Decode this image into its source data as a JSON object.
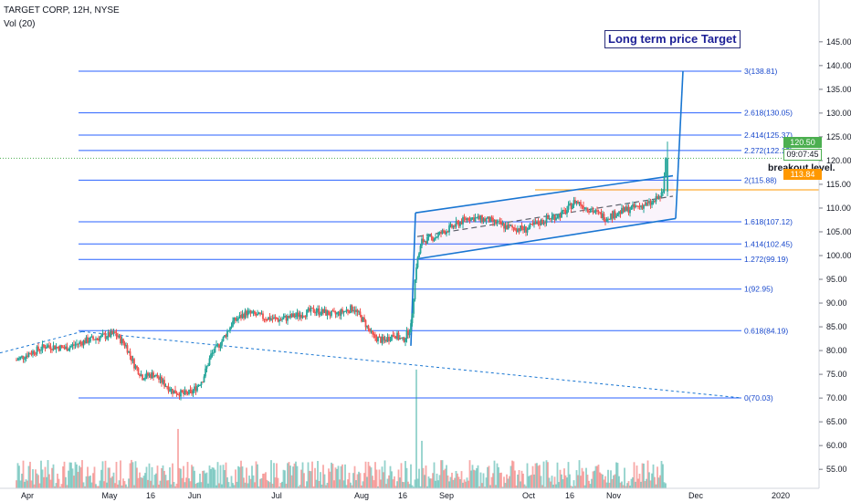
{
  "header": {
    "symbol": "TARGET CORP, 12H, NYSE",
    "volume_label": "Vol (20)"
  },
  "annotations": {
    "target_label": "Long term price Target",
    "breakout_label": "breakout level."
  },
  "price_labels": {
    "last_price": "120.50",
    "countdown": "09:07:45",
    "breakout_price": "113.84"
  },
  "colors": {
    "up": "#26a69a",
    "down": "#ef5350",
    "fib": "#2962ff",
    "channel": "#1976d2",
    "last_price_line": "#4caf50",
    "breakout_line": "#ff9800"
  },
  "chart_data": {
    "type": "candlestick",
    "title": "TARGET CORP, 12H, NYSE",
    "x_ticks": [
      "Apr",
      "May",
      "16",
      "Jun",
      "Jul",
      "Aug",
      "16",
      "Sep",
      "Oct",
      "16",
      "Nov",
      "Dec",
      "2020"
    ],
    "y_ticks": [
      55,
      60,
      65,
      70,
      75,
      80,
      85,
      90,
      95,
      100,
      105,
      110,
      115,
      120,
      125,
      130,
      135,
      140,
      145
    ],
    "ylim": [
      51,
      149
    ],
    "fib_levels": [
      {
        "label": "0(70.03)",
        "value": 70.03
      },
      {
        "label": "0.618(84.19)",
        "value": 84.19
      },
      {
        "label": "1(92.95)",
        "value": 92.95
      },
      {
        "label": "1.272(99.19)",
        "value": 99.19
      },
      {
        "label": "1.414(102.45)",
        "value": 102.45
      },
      {
        "label": "1.618(107.12)",
        "value": 107.12
      },
      {
        "label": "2(115.88)",
        "value": 115.88
      },
      {
        "label": "2.272(122.12)",
        "value": 122.12
      },
      {
        "label": "2.414(125.37)",
        "value": 125.37
      },
      {
        "label": "2.618(130.05)",
        "value": 130.05
      },
      {
        "label": "3(138.81)",
        "value": 138.81
      }
    ],
    "last_price": 120.5,
    "breakout_level": 113.84,
    "price_path": [
      {
        "t": "Mar 28",
        "close": 78.0
      },
      {
        "t": "Apr 2",
        "close": 79.5
      },
      {
        "t": "Apr 8",
        "close": 81.0
      },
      {
        "t": "Apr 15",
        "close": 80.5
      },
      {
        "t": "Apr 22",
        "close": 82.0
      },
      {
        "t": "Apr 29",
        "close": 83.0
      },
      {
        "t": "May 3",
        "close": 83.5
      },
      {
        "t": "May 7",
        "close": 81.0
      },
      {
        "t": "May 10",
        "close": 77.0
      },
      {
        "t": "May 13",
        "close": 74.5
      },
      {
        "t": "May 17",
        "close": 75.0
      },
      {
        "t": "May 21",
        "close": 73.0
      },
      {
        "t": "May 24",
        "close": 71.5
      },
      {
        "t": "May 28",
        "close": 70.8
      },
      {
        "t": "May 31",
        "close": 71.2
      },
      {
        "t": "Jun 4",
        "close": 74.0
      },
      {
        "t": "Jun 7",
        "close": 79.0
      },
      {
        "t": "Jun 11",
        "close": 82.0
      },
      {
        "t": "Jun 15",
        "close": 86.0
      },
      {
        "t": "Jun 20",
        "close": 88.0
      },
      {
        "t": "Jun 26",
        "close": 87.0
      },
      {
        "t": "Jul 2",
        "close": 86.5
      },
      {
        "t": "Jul 9",
        "close": 87.5
      },
      {
        "t": "Jul 15",
        "close": 88.5
      },
      {
        "t": "Jul 22",
        "close": 87.5
      },
      {
        "t": "Jul 29",
        "close": 89.0
      },
      {
        "t": "Aug 2",
        "close": 86.0
      },
      {
        "t": "Aug 5",
        "close": 83.0
      },
      {
        "t": "Aug 9",
        "close": 82.0
      },
      {
        "t": "Aug 13",
        "close": 83.5
      },
      {
        "t": "Aug 16",
        "close": 82.0
      },
      {
        "t": "Aug 19",
        "close": 85.0
      },
      {
        "t": "Aug 21",
        "close": 98.0
      },
      {
        "t": "Aug 23",
        "close": 103.0
      },
      {
        "t": "Aug 28",
        "close": 104.0
      },
      {
        "t": "Sep 3",
        "close": 106.0
      },
      {
        "t": "Sep 9",
        "close": 108.0
      },
      {
        "t": "Sep 16",
        "close": 107.5
      },
      {
        "t": "Sep 23",
        "close": 106.0
      },
      {
        "t": "Sep 30",
        "close": 105.5
      },
      {
        "t": "Oct 7",
        "close": 107.5
      },
      {
        "t": "Oct 14",
        "close": 109.0
      },
      {
        "t": "Oct 18",
        "close": 111.5
      },
      {
        "t": "Oct 24",
        "close": 109.5
      },
      {
        "t": "Oct 29",
        "close": 108.0
      },
      {
        "t": "Nov 5",
        "close": 109.5
      },
      {
        "t": "Nov 11",
        "close": 110.5
      },
      {
        "t": "Nov 15",
        "close": 111.0
      },
      {
        "t": "Nov 19",
        "close": 113.0
      },
      {
        "t": "Nov 20",
        "close": 120.5
      }
    ],
    "volume": {
      "baseline_max": 57,
      "spikes": [
        {
          "t": "May 26",
          "value": 63.5
        },
        {
          "t": "Aug 21",
          "value": 76.0
        },
        {
          "t": "Aug 23",
          "value": 61.0
        }
      ]
    },
    "xlabel": "",
    "ylabel": ""
  }
}
